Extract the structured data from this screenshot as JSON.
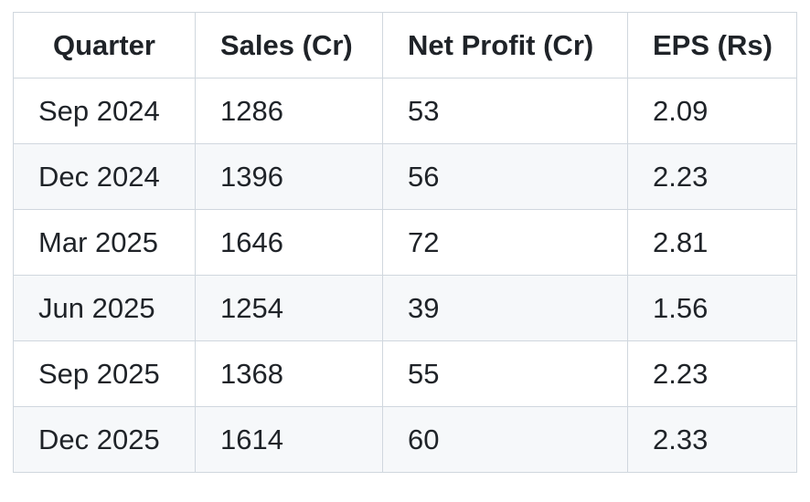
{
  "table": {
    "headers": [
      "Quarter",
      "Sales (Cr)",
      "Net Profit (Cr)",
      "EPS (Rs)"
    ],
    "rows": [
      [
        "Sep 2024",
        "1286",
        "53",
        "2.09"
      ],
      [
        "Dec 2024",
        "1396",
        "56",
        "2.23"
      ],
      [
        "Mar 2025",
        "1646",
        "72",
        "2.81"
      ],
      [
        "Jun 2025",
        "1254",
        "39",
        "1.56"
      ],
      [
        "Sep 2025",
        "1368",
        "55",
        "2.23"
      ],
      [
        "Dec 2025",
        "1614",
        "60",
        "2.33"
      ]
    ]
  }
}
